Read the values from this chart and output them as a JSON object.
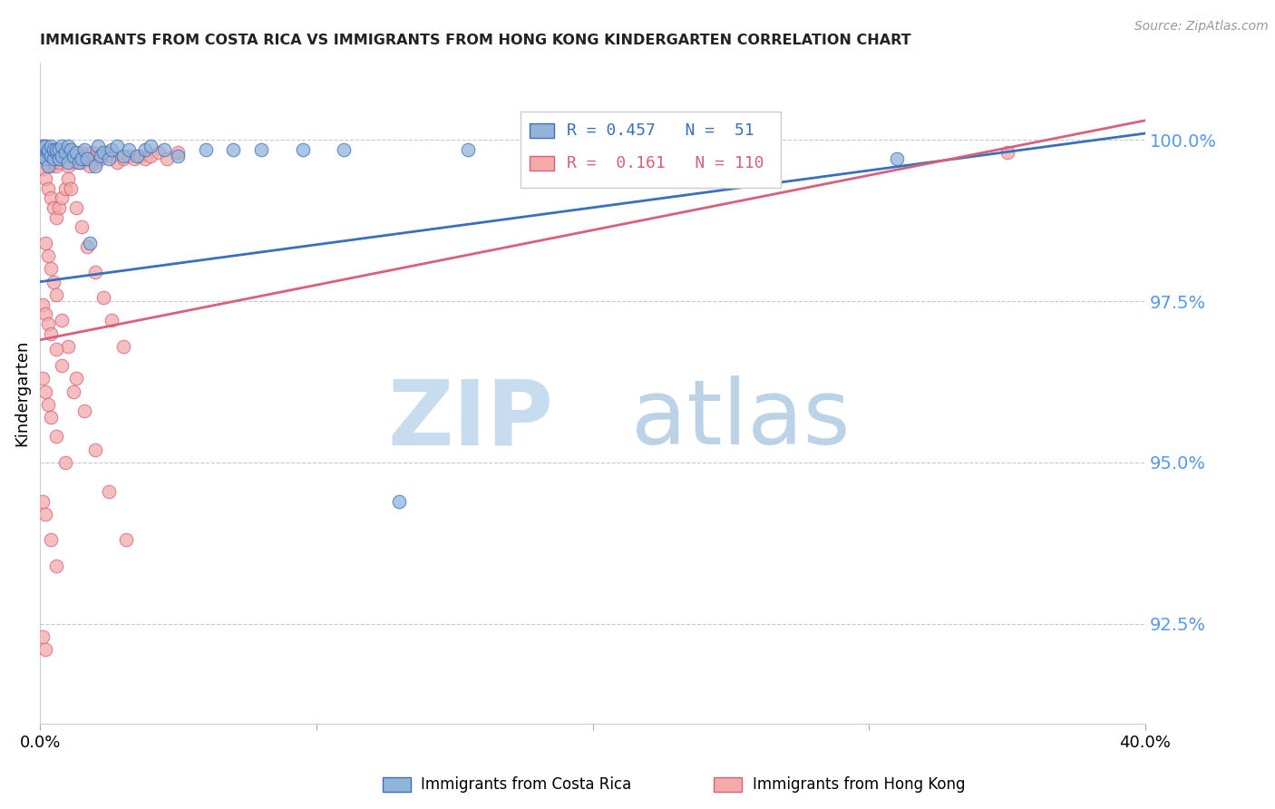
{
  "title": "IMMIGRANTS FROM COSTA RICA VS IMMIGRANTS FROM HONG KONG KINDERGARTEN CORRELATION CHART",
  "source": "Source: ZipAtlas.com",
  "ylabel": "Kindergarten",
  "yaxis_labels": [
    "100.0%",
    "97.5%",
    "95.0%",
    "92.5%"
  ],
  "yaxis_values": [
    1.0,
    0.975,
    0.95,
    0.925
  ],
  "xmin": 0.0,
  "xmax": 0.4,
  "ymin": 0.9095,
  "ymax": 1.012,
  "legend_blue_r": "R = 0.457",
  "legend_blue_n": "N =  51",
  "legend_pink_r": "R =  0.161",
  "legend_pink_n": "N = 110",
  "blue_color": "#92B4D8",
  "pink_color": "#F4AAAA",
  "trendline_blue": "#3A6FBF",
  "trendline_pink": "#D9607A",
  "label_blue": "Immigrants from Costa Rica",
  "label_pink": "Immigrants from Hong Kong",
  "axis_label_color": "#5599EE",
  "title_color": "#222222",
  "blue_x": [
    0.001,
    0.001,
    0.002,
    0.002,
    0.003,
    0.003,
    0.003,
    0.004,
    0.004,
    0.005,
    0.005,
    0.006,
    0.006,
    0.007,
    0.007,
    0.008,
    0.008,
    0.009,
    0.01,
    0.01,
    0.011,
    0.012,
    0.013,
    0.014,
    0.015,
    0.016,
    0.017,
    0.018,
    0.02,
    0.021,
    0.022,
    0.023,
    0.025,
    0.026,
    0.028,
    0.03,
    0.032,
    0.035,
    0.038,
    0.04,
    0.045,
    0.05,
    0.06,
    0.07,
    0.08,
    0.095,
    0.11,
    0.13,
    0.155,
    0.185,
    0.31
  ],
  "blue_y": [
    0.9975,
    0.999,
    0.997,
    0.999,
    0.996,
    0.998,
    0.9985,
    0.9975,
    0.999,
    0.997,
    0.9985,
    0.998,
    0.9985,
    0.997,
    0.9985,
    0.9975,
    0.999,
    0.998,
    0.9965,
    0.999,
    0.9985,
    0.9975,
    0.998,
    0.9965,
    0.997,
    0.9985,
    0.997,
    0.984,
    0.996,
    0.999,
    0.9975,
    0.998,
    0.997,
    0.9985,
    0.999,
    0.9975,
    0.9985,
    0.9975,
    0.9985,
    0.999,
    0.9985,
    0.9975,
    0.9985,
    0.9985,
    0.9985,
    0.9985,
    0.9985,
    0.944,
    0.9985,
    0.9985,
    0.997
  ],
  "pink_x": [
    0.0005,
    0.001,
    0.001,
    0.001,
    0.001,
    0.001,
    0.002,
    0.002,
    0.002,
    0.002,
    0.002,
    0.003,
    0.003,
    0.003,
    0.003,
    0.003,
    0.004,
    0.004,
    0.004,
    0.004,
    0.005,
    0.005,
    0.005,
    0.006,
    0.006,
    0.006,
    0.007,
    0.007,
    0.007,
    0.008,
    0.008,
    0.009,
    0.009,
    0.01,
    0.01,
    0.011,
    0.012,
    0.013,
    0.014,
    0.015,
    0.015,
    0.016,
    0.017,
    0.018,
    0.019,
    0.02,
    0.021,
    0.022,
    0.024,
    0.026,
    0.028,
    0.03,
    0.032,
    0.034,
    0.036,
    0.038,
    0.04,
    0.043,
    0.046,
    0.05,
    0.001,
    0.002,
    0.003,
    0.004,
    0.005,
    0.006,
    0.007,
    0.008,
    0.009,
    0.01,
    0.011,
    0.013,
    0.015,
    0.017,
    0.02,
    0.023,
    0.026,
    0.03,
    0.002,
    0.003,
    0.004,
    0.005,
    0.006,
    0.008,
    0.01,
    0.013,
    0.016,
    0.02,
    0.025,
    0.031,
    0.001,
    0.002,
    0.003,
    0.004,
    0.006,
    0.008,
    0.012,
    0.001,
    0.002,
    0.003,
    0.004,
    0.006,
    0.009,
    0.001,
    0.002,
    0.004,
    0.006,
    0.001,
    0.002,
    0.35
  ],
  "pink_y": [
    0.9985,
    0.9975,
    0.998,
    0.9985,
    0.9975,
    0.999,
    0.9975,
    0.998,
    0.9985,
    0.999,
    0.9965,
    0.997,
    0.998,
    0.9975,
    0.9985,
    0.9965,
    0.997,
    0.9975,
    0.9985,
    0.996,
    0.9965,
    0.997,
    0.9985,
    0.996,
    0.997,
    0.9985,
    0.9965,
    0.997,
    0.9985,
    0.997,
    0.9985,
    0.997,
    0.9985,
    0.996,
    0.998,
    0.9975,
    0.998,
    0.9965,
    0.997,
    0.998,
    0.9965,
    0.997,
    0.9975,
    0.996,
    0.998,
    0.9965,
    0.9975,
    0.997,
    0.998,
    0.9975,
    0.9965,
    0.997,
    0.9975,
    0.997,
    0.9975,
    0.997,
    0.9975,
    0.998,
    0.997,
    0.998,
    0.9955,
    0.994,
    0.9925,
    0.991,
    0.9895,
    0.988,
    0.9895,
    0.991,
    0.9925,
    0.994,
    0.9925,
    0.9895,
    0.9865,
    0.9835,
    0.9795,
    0.9755,
    0.972,
    0.968,
    0.984,
    0.982,
    0.98,
    0.978,
    0.976,
    0.972,
    0.968,
    0.963,
    0.958,
    0.952,
    0.9455,
    0.938,
    0.9745,
    0.973,
    0.9715,
    0.97,
    0.9675,
    0.965,
    0.961,
    0.963,
    0.961,
    0.959,
    0.957,
    0.954,
    0.95,
    0.944,
    0.942,
    0.938,
    0.934,
    0.923,
    0.921,
    0.998
  ],
  "blue_trend_x": [
    0.0,
    0.4
  ],
  "blue_trend_y": [
    0.978,
    1.001
  ],
  "pink_trend_x": [
    0.0,
    0.4
  ],
  "pink_trend_y": [
    0.969,
    1.003
  ]
}
